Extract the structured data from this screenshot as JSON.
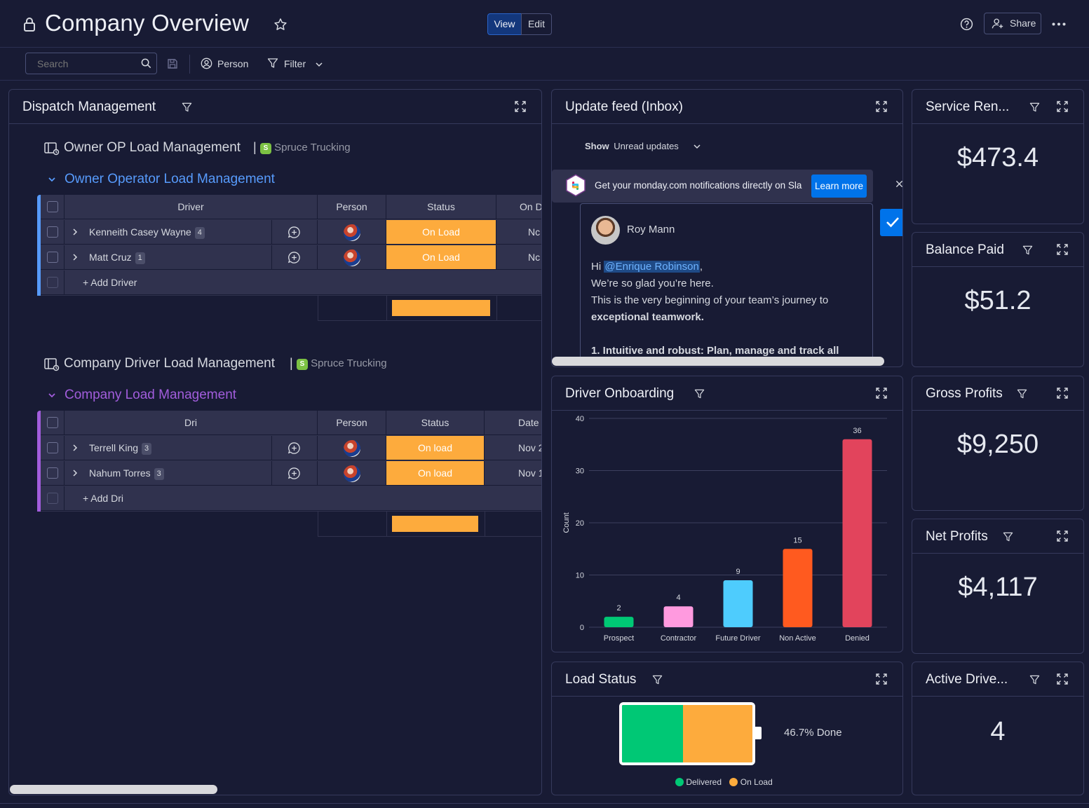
{
  "header": {
    "title": "Company Overview",
    "view_label": "View",
    "edit_label": "Edit",
    "share_label": "Share"
  },
  "toolbar": {
    "search_placeholder": "Search",
    "person_label": "Person",
    "filter_label": "Filter"
  },
  "dispatch": {
    "title": "Dispatch Management",
    "boards": [
      {
        "title": "Owner OP Load Management",
        "workspace": "Spruce Trucking",
        "workspace_initial": "S",
        "group_title": "Owner Operator Load Management",
        "group_color": "#579bfc",
        "columns": {
          "name": "Driver",
          "person": "Person",
          "status": "Status",
          "date": "On D"
        },
        "rows": [
          {
            "name": "Kenneith Casey Wayne",
            "count": "4",
            "status": "On Load",
            "date": "Nc"
          },
          {
            "name": "Matt Cruz",
            "count": "1",
            "status": "On Load",
            "date": "Nc"
          }
        ],
        "add_label": "+ Add Driver"
      },
      {
        "title": "Company Driver Load Management",
        "workspace": "Spruce Trucking",
        "workspace_initial": "S",
        "group_title": "Company Load Management",
        "group_color": "#a25ddc",
        "columns": {
          "name": "Dri",
          "person": "Person",
          "status": "Status",
          "date": "Date"
        },
        "rows": [
          {
            "name": "Terrell King",
            "count": "3",
            "status": "On load",
            "date": "Nov 2"
          },
          {
            "name": "Nahum Torres",
            "count": "3",
            "status": "On load",
            "date": "Nov 1"
          }
        ],
        "add_label": "+ Add Dri"
      }
    ]
  },
  "update_feed": {
    "title": "Update feed (Inbox)",
    "show_label": "Show",
    "show_value": "Unread updates",
    "banner_text": "Get your monday.com notifications directly on Sla",
    "banner_button": "Learn more",
    "post": {
      "author": "Roy Mann",
      "greeting": "Hi",
      "mention": "@Enrique Robinson",
      "after_mention": ",",
      "line2": "We’re so glad you’re here.",
      "line3": "This is the very beginning of your team’s journey to",
      "line4": "exceptional teamwork.",
      "line5": "1. Intuitive and robust: Plan, manage and track all"
    }
  },
  "metrics": [
    {
      "title": "Service Ren...",
      "value": "$473.4"
    },
    {
      "title": "Balance Paid",
      "value": "$51.2"
    },
    {
      "title": "Gross Profits",
      "value": "$9,250"
    },
    {
      "title": "Net Profits",
      "value": "$4,117"
    },
    {
      "title": "Active Drive...",
      "value": "4"
    }
  ],
  "onboarding": {
    "title": "Driver Onboarding"
  },
  "chart_data": {
    "type": "bar",
    "title": "Driver Onboarding",
    "categories": [
      "Prospect",
      "Contractor",
      "Future Driver",
      "Non Active",
      "Denied"
    ],
    "values": [
      2,
      4,
      9,
      15,
      36
    ],
    "colors": [
      "#00c875",
      "#ff9adf",
      "#4eccfd",
      "#ff5a1f",
      "#e2445c"
    ],
    "xlabel": "",
    "ylabel": "Count",
    "ylim": [
      0,
      40
    ],
    "yticks": [
      0,
      10,
      20,
      30,
      40
    ],
    "grid": true
  },
  "load_status": {
    "title": "Load Status",
    "done_label": "46.7% Done",
    "segments": [
      {
        "name": "Delivered",
        "color": "#00c875",
        "fraction": 0.467
      },
      {
        "name": "On Load",
        "color": "#fdab3d",
        "fraction": 0.533
      }
    ]
  }
}
